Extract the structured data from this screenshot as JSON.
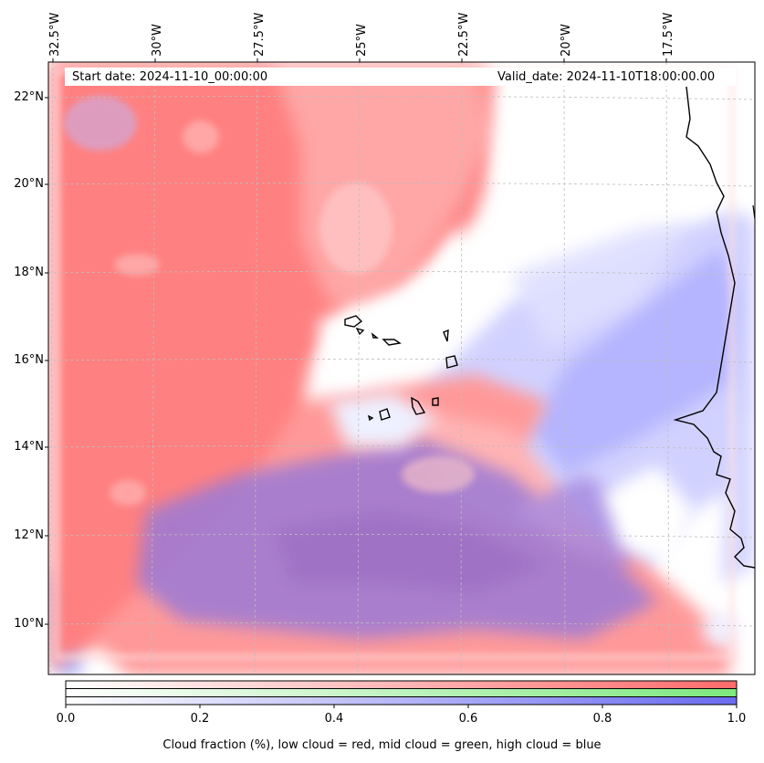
{
  "map": {
    "longitude_labels": [
      "32.5°W",
      "30°W",
      "27.5°W",
      "25°W",
      "22.5°W",
      "20°W",
      "17.5°W"
    ],
    "latitude_labels": [
      "22°N",
      "20°N",
      "18°N",
      "16°N",
      "14°N",
      "12°N",
      "10°N"
    ],
    "start_date": "Start date: 2024-11-10_00:00:00",
    "valid_date": "Valid_date: 2024-11-10T18:00:00.00"
  },
  "colorbar": {
    "tick_labels": [
      "0.0",
      "0.2",
      "0.4",
      "0.6",
      "0.8",
      "1.0"
    ],
    "title": "Cloud fraction (%), low cloud = red, mid cloud = green, high cloud = blue",
    "colors": {
      "low": "#ff6b6b",
      "mid": "#7ee87e",
      "high": "#6b6bf0"
    }
  }
}
